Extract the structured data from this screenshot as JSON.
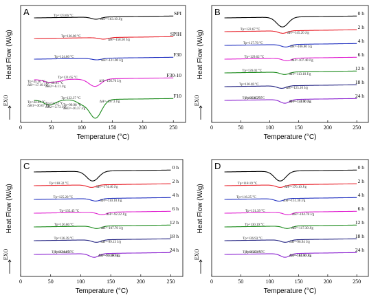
{
  "chart_data": [
    {
      "type": "line",
      "panel_label": "A",
      "xlabel": "Temperature (°C)",
      "ylabel": "Heat Flow (W/g)",
      "exo_label": "EXO",
      "xlim": [
        0,
        270
      ],
      "xticks": [
        "0",
        "50",
        "100",
        "150",
        "200",
        "250"
      ],
      "series": [
        {
          "name": "SPI",
          "color": "#000000",
          "peaks": [
            {
              "x": 123.66,
              "depth": 0.35
            }
          ],
          "annotations": [
            "Tp=123.66 °C",
            "ΔH=-163.10 J/g"
          ]
        },
        {
          "name": "SPIH",
          "color": "#e8202a",
          "peaks": [
            {
              "x": 136.0,
              "depth": 0.25
            }
          ],
          "annotations": [
            "Tp=136.00 °C",
            "ΔH=-158.50 J/g"
          ]
        },
        {
          "name": "F30",
          "color": "#2030c0",
          "peaks": [
            {
              "x": 124.8,
              "depth": 0.25
            }
          ],
          "annotations": [
            "Tp=124.80 °C",
            "ΔH=-121.00 J/g"
          ]
        },
        {
          "name": "F30-10",
          "color": "#e020d0",
          "peaks": [
            {
              "x": 45.3,
              "depth": 0.4
            },
            {
              "x": 60.91,
              "depth": 0.3
            },
            {
              "x": 121.65,
              "depth": 1.2
            }
          ],
          "annotations": [
            "Tp=45.30 °C",
            "ΔH=-17.10 J/g",
            "Tp=60.91 °C",
            "ΔH2=-6.11 J/g",
            "Tp=121.65 °C",
            "ΔH=-156.70 J/g"
          ]
        },
        {
          "name": "F10",
          "color": "#1a8a1a",
          "peaks": [
            {
              "x": 44.62,
              "depth": 0.6
            },
            {
              "x": 54.22,
              "depth": 0.3
            },
            {
              "x": 99.98,
              "depth": 0.6
            },
            {
              "x": 122.37,
              "depth": 3.0
            }
          ],
          "annotations": [
            "Tp=44.62 °C",
            "ΔH1=-30.67 J/g",
            "Tp=54.22 °C",
            "ΔH2=-3.73 J/g",
            "Tp=99.98 °C",
            "ΔH3=-10.37 J/g",
            "Tp=122.37 °C",
            "ΔH=-197.3 J/g"
          ]
        }
      ]
    },
    {
      "type": "line",
      "panel_label": "B",
      "xlabel": "Temperature (°C)",
      "ylabel": "Heat Flow (W/g)",
      "exo_label": "EXO",
      "xlim": [
        0,
        270
      ],
      "xticks": [
        "0",
        "50",
        "100",
        "150",
        "200",
        "250"
      ],
      "series": [
        {
          "name": "0 h",
          "color": "#000000",
          "peaks": [
            {
              "x": 122.0,
              "depth": 1.6
            }
          ],
          "annotations": []
        },
        {
          "name": "2 h",
          "color": "#e8202a",
          "peaks": [
            {
              "x": 122.67,
              "depth": 0.4
            }
          ],
          "annotations": [
            "Tp=122.67 °C",
            "ΔH=-145.20 J/g"
          ]
        },
        {
          "name": "4 h",
          "color": "#2030c0",
          "peaks": [
            {
              "x": 127.7,
              "depth": 0.4
            }
          ],
          "annotations": [
            "Tp=127.70 °C",
            "ΔH=-106.80 J/g"
          ]
        },
        {
          "name": "6 h",
          "color": "#e020d0",
          "peaks": [
            {
              "x": 129.62,
              "depth": 0.4
            }
          ],
          "annotations": [
            "Tp=129.62 °C",
            "ΔH=-107.40 J/g"
          ]
        },
        {
          "name": "12 h",
          "color": "#1a8a1a",
          "peaks": [
            {
              "x": 126.02,
              "depth": 0.4
            }
          ],
          "annotations": [
            "Tp=126.02 °C",
            "ΔH=-113.10 J/g"
          ]
        },
        {
          "name": "18 h",
          "color": "#202080",
          "peaks": [
            {
              "x": 120.69,
              "depth": 0.4
            }
          ],
          "annotations": [
            "Tp=120.69 °C",
            "ΔH=-125.10 J/g"
          ]
        },
        {
          "name": "24 h",
          "color": "#8a20d0",
          "peaks": [
            {
              "x": 126.15,
              "depth": 0.6
            }
          ],
          "annotations": [
            "Tp=126.15 °C",
            "ΔH=-123.90 J/g",
            "Tp=130.29 °C",
            "ΔH=-124.00 J/g"
          ]
        }
      ]
    },
    {
      "type": "line",
      "panel_label": "C",
      "xlabel": "Temperature (°C)",
      "ylabel": "Heat Flow (W/g)",
      "exo_label": "EXO",
      "xlim": [
        0,
        270
      ],
      "xticks": [
        "0",
        "50",
        "100",
        "150",
        "200",
        "250"
      ],
      "series": [
        {
          "name": "0 h",
          "color": "#000000",
          "peaks": [
            {
              "x": 120.0,
              "depth": 1.6
            }
          ],
          "annotations": []
        },
        {
          "name": "2 h",
          "color": "#e8202a",
          "peaks": [
            {
              "x": 118.32,
              "depth": 0.4
            }
          ],
          "annotations": [
            "Tp=118.32 °C",
            "ΔH=-174.40 J/g"
          ]
        },
        {
          "name": "4 h",
          "color": "#2030c0",
          "peaks": [
            {
              "x": 125.2,
              "depth": 0.4
            }
          ],
          "annotations": [
            "Tp=125.20 °C",
            "ΔH=-110.10 J/g"
          ]
        },
        {
          "name": "6 h",
          "color": "#e020d0",
          "peaks": [
            {
              "x": 135.45,
              "depth": 0.4
            }
          ],
          "annotations": [
            "Tp=135.45 °C",
            "ΔH=-92.22 J/g"
          ]
        },
        {
          "name": "12 h",
          "color": "#1a8a1a",
          "peaks": [
            {
              "x": 126.8,
              "depth": 0.4
            }
          ],
          "annotations": [
            "Tp=126.80 °C",
            "ΔH=-107.70 J/g"
          ]
        },
        {
          "name": "18 h",
          "color": "#202080",
          "peaks": [
            {
              "x": 126.39,
              "depth": 0.4
            }
          ],
          "annotations": [
            "Tp=126.39 °C",
            "ΔH=-99.13 J/g"
          ]
        },
        {
          "name": "24 h",
          "color": "#8a20d0",
          "peaks": [
            {
              "x": 122.44,
              "depth": 0.6
            }
          ],
          "annotations": [
            "Tp=122.44 °C",
            "ΔH=-91.40 J/g",
            "Tp=130.02 °C",
            "ΔH=-110.80 J/g"
          ]
        }
      ]
    },
    {
      "type": "line",
      "panel_label": "D",
      "xlabel": "Temperature (°C)",
      "ylabel": "Heat Flow (W/g)",
      "exo_label": "EXO",
      "xlim": [
        0,
        270
      ],
      "xticks": [
        "0",
        "50",
        "100",
        "150",
        "200",
        "250"
      ],
      "series": [
        {
          "name": "0 h",
          "color": "#000000",
          "peaks": [
            {
              "x": 118.0,
              "depth": 1.6
            }
          ],
          "annotations": []
        },
        {
          "name": "2 h",
          "color": "#e8202a",
          "peaks": [
            {
              "x": 118.19,
              "depth": 0.4
            }
          ],
          "annotations": [
            "Tp=118.19 °C",
            "ΔH=-176.10 J/g"
          ]
        },
        {
          "name": "4 h",
          "color": "#2030c0",
          "peaks": [
            {
              "x": 116.25,
              "depth": 0.4
            }
          ],
          "annotations": [
            "Tp=116.25 °C",
            "ΔH=-151.30 J/g"
          ]
        },
        {
          "name": "6 h",
          "color": "#e020d0",
          "peaks": [
            {
              "x": 131.39,
              "depth": 0.4
            }
          ],
          "annotations": [
            "Tp=131.39 °C",
            "ΔH=-104.78 J/g"
          ]
        },
        {
          "name": "12 h",
          "color": "#1a8a1a",
          "peaks": [
            {
              "x": 130.19,
              "depth": 0.4
            }
          ],
          "annotations": [
            "Tp=130.19 °C",
            "ΔH=-117.30 J/g"
          ]
        },
        {
          "name": "18 h",
          "color": "#202080",
          "peaks": [
            {
              "x": 126.93,
              "depth": 0.4
            }
          ],
          "annotations": [
            "Tp=126.93 °C",
            "ΔH=-96.94 J/g"
          ]
        },
        {
          "name": "24 h",
          "color": "#8a20d0",
          "peaks": [
            {
              "x": 126.59,
              "depth": 0.6
            }
          ],
          "annotations": [
            "Tp=126.59 °C",
            "ΔH=-103.10 J/g",
            "Tp=130.16 °C",
            "ΔH=-114.00 J/g"
          ]
        }
      ]
    }
  ]
}
